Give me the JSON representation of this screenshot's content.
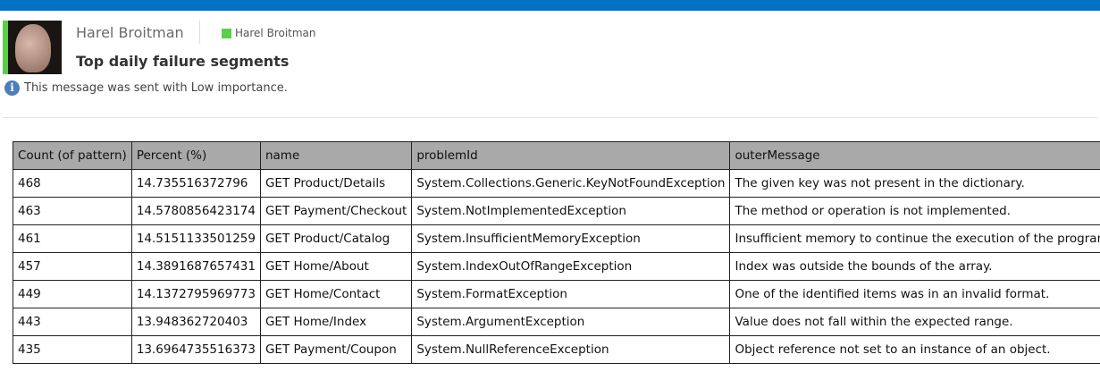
{
  "sender": {
    "name": "Harel Broitman",
    "recipient": "Harel Broitman",
    "recipient_color": "#5cce4a"
  },
  "subject": "Top daily failure segments",
  "importance_notice": "This message was sent with Low importance.",
  "table": {
    "columns": [
      "Count (of pattern)",
      "Percent (%)",
      "name",
      "problemId",
      "outerMessage"
    ],
    "rows": [
      [
        "468",
        "14.735516372796",
        "GET Product/Details",
        "System.Collections.Generic.KeyNotFoundException",
        "The given key was not present in the dictionary."
      ],
      [
        "463",
        "14.5780856423174",
        "GET Payment/Checkout",
        "System.NotImplementedException",
        "The method or operation is not implemented."
      ],
      [
        "461",
        "14.5151133501259",
        "GET Product/Catalog",
        "System.InsufficientMemoryException",
        "Insufficient memory to continue the execution of the program."
      ],
      [
        "457",
        "14.3891687657431",
        "GET Home/About",
        "System.IndexOutOfRangeException",
        "Index was outside the bounds of the array."
      ],
      [
        "449",
        "14.1372795969773",
        "GET Home/Contact",
        "System.FormatException",
        "One of the identified items was in an invalid format."
      ],
      [
        "443",
        "13.948362720403",
        "GET Home/Index",
        "System.ArgumentException",
        "Value does not fall within the expected range."
      ],
      [
        "435",
        "13.6964735516373",
        "GET Payment/Coupon",
        "System.NullReferenceException",
        "Object reference not set to an instance of an object."
      ]
    ]
  }
}
